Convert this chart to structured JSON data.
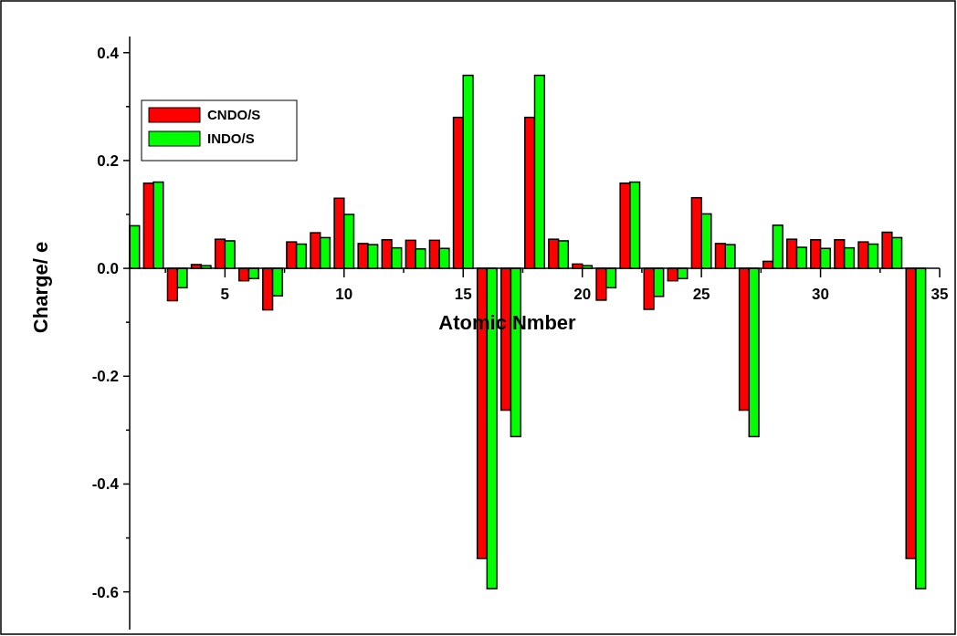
{
  "chart_data": {
    "type": "bar",
    "xlabel": "Atomic Nmber",
    "ylabel": "Charge/ e",
    "x": [
      1,
      2,
      3,
      4,
      5,
      6,
      7,
      8,
      9,
      10,
      11,
      12,
      13,
      14,
      15,
      16,
      17,
      18,
      19,
      20,
      21,
      22,
      23,
      24,
      25,
      26,
      27,
      28,
      29,
      30,
      31,
      32,
      33,
      34
    ],
    "series": [
      {
        "name": "CNDO/S",
        "color": "#ff0000",
        "values": [
          null,
          0.158,
          -0.06,
          0.007,
          0.054,
          -0.023,
          -0.077,
          0.049,
          0.066,
          0.13,
          0.046,
          0.053,
          0.052,
          0.052,
          0.28,
          -0.538,
          -0.263,
          0.28,
          0.054,
          0.008,
          -0.059,
          0.158,
          -0.076,
          -0.023,
          0.131,
          0.046,
          -0.263,
          0.013,
          0.054,
          0.053,
          0.053,
          0.049,
          0.067,
          -0.538
        ]
      },
      {
        "name": "INDO/S",
        "color": "#00ff00",
        "values": [
          0.079,
          0.16,
          -0.036,
          0.005,
          0.051,
          -0.019,
          -0.051,
          0.045,
          0.057,
          0.1,
          0.044,
          0.038,
          0.036,
          0.037,
          0.358,
          -0.594,
          -0.312,
          0.358,
          0.051,
          0.005,
          -0.036,
          0.16,
          -0.052,
          -0.019,
          0.101,
          0.044,
          -0.312,
          0.08,
          0.039,
          0.037,
          0.038,
          0.045,
          0.057,
          -0.594
        ]
      }
    ],
    "xlim": [
      1,
      35
    ],
    "xticks": [
      {
        "value": 2.5,
        "label": null
      },
      5,
      {
        "value": 7.5,
        "label": null
      },
      10,
      {
        "value": 12.5,
        "label": null
      },
      15,
      {
        "value": 17.5,
        "label": null
      },
      20,
      {
        "value": 22.5,
        "label": null
      },
      25,
      {
        "value": 27.5,
        "label": null
      },
      30,
      {
        "value": 32.5,
        "label": null
      },
      35
    ],
    "ylim": [
      -0.67,
      0.43
    ],
    "yticks": [
      {
        "value": -0.6,
        "label": "-0.6"
      },
      {
        "value": -0.5,
        "label": null
      },
      {
        "value": -0.4,
        "label": "-0.4"
      },
      {
        "value": -0.3,
        "label": null
      },
      {
        "value": -0.2,
        "label": "-0.2"
      },
      {
        "value": -0.1,
        "label": null
      },
      {
        "value": 0,
        "label": "0.0"
      },
      {
        "value": 0.1,
        "label": null
      },
      {
        "value": 0.2,
        "label": "0.2"
      },
      {
        "value": 0.3,
        "label": null
      },
      {
        "value": 0.4,
        "label": "0.4"
      }
    ],
    "legend": "top left",
    "grid": false
  }
}
